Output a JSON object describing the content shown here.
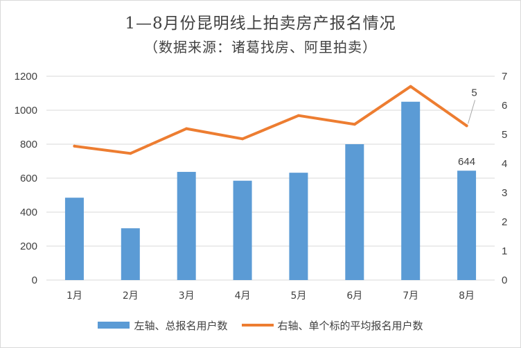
{
  "title": "1—8月份昆明线上拍卖房产报名情况",
  "subtitle": "（数据来源：诸葛找房、阿里拍卖）",
  "colors": {
    "bar": "#5b9bd5",
    "line": "#ed7d31",
    "grid": "#d9d9d9",
    "text": "#404040"
  },
  "chart_data": {
    "type": "bar",
    "categories": [
      "1月",
      "2月",
      "3月",
      "4月",
      "5月",
      "6月",
      "7月",
      "8月"
    ],
    "series": [
      {
        "name": "左轴、总报名用户数",
        "type": "bar",
        "axis": "left",
        "values": [
          485,
          305,
          637,
          585,
          632,
          800,
          1050,
          644
        ]
      },
      {
        "name": "右轴、单个标的平均报名用户数",
        "type": "line",
        "axis": "right",
        "values": [
          4.6,
          4.35,
          5.2,
          4.85,
          5.65,
          5.35,
          6.65,
          5.3
        ]
      }
    ],
    "yleft": {
      "lim": [
        0,
        1200
      ],
      "ticks": [
        "0",
        "200",
        "400",
        "600",
        "800",
        "1000",
        "1200"
      ]
    },
    "yright": {
      "lim": [
        0,
        7
      ],
      "ticks": [
        "0",
        "1",
        "2",
        "3",
        "4",
        "5",
        "6",
        "7"
      ]
    },
    "data_labels": [
      {
        "series": 0,
        "index": 7,
        "text": "644"
      },
      {
        "series": 1,
        "index": 7,
        "text": "5"
      }
    ],
    "grid": true,
    "legend_position": "bottom"
  }
}
